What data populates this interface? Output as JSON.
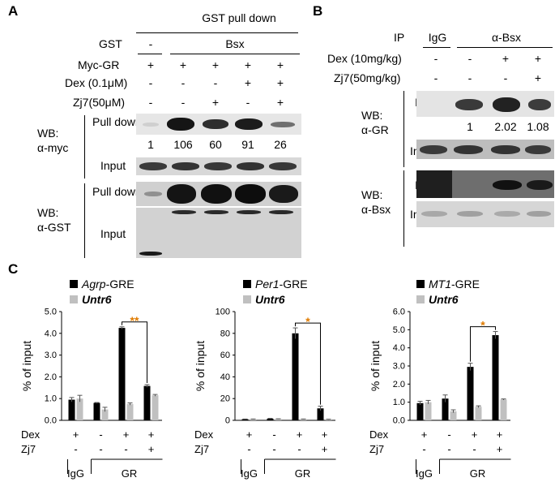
{
  "panelA": {
    "letter": "A",
    "header": "GST pull down",
    "rows": [
      {
        "label": "GST",
        "values": [
          "-",
          "Bsx"
        ]
      },
      {
        "label": "Myc-GR",
        "values": [
          "+",
          "+",
          "+",
          "+",
          "+"
        ]
      },
      {
        "label": "Dex (0.1μM)",
        "values": [
          "-",
          "-",
          "-",
          "+",
          "+"
        ]
      },
      {
        "label": "Zj7(50μM)",
        "values": [
          "-",
          "-",
          "+",
          "-",
          "+"
        ]
      }
    ],
    "wb_myc": {
      "label_line1": "WB:",
      "label_line2": "α-myc",
      "pull_down": "Pull down",
      "input": "Input",
      "quant": [
        "1",
        "106",
        "60",
        "91",
        "26"
      ]
    },
    "wb_gst": {
      "label_line1": "WB:",
      "label_line2": "α-GST",
      "pull_down": "Pull down",
      "input": "Input"
    }
  },
  "panelB": {
    "letter": "B",
    "ip_label": "IP",
    "igg": "IgG",
    "anti_bsx": "α-Bsx",
    "rows": [
      {
        "label": "Dex (10mg/kg)",
        "values": [
          "-",
          "-",
          "+",
          "+"
        ]
      },
      {
        "label": "Zj7(50mg/kg)",
        "values": [
          "-",
          "-",
          "-",
          "+"
        ]
      }
    ],
    "wb_gr": {
      "label_line1": "WB:",
      "label_line2": "α-GR",
      "ip": "IP",
      "input": "Input",
      "quant": [
        "1",
        "2.02",
        "1.08"
      ]
    },
    "wb_bsx": {
      "label_line1": "WB:",
      "label_line2": "α-Bsx",
      "ip": "IP",
      "input": "Input"
    }
  },
  "panelC": {
    "letter": "C",
    "row_labels": {
      "dex": "Dex",
      "zj7": "Zj7"
    },
    "dex_values": [
      "+",
      "-",
      "+",
      "+"
    ],
    "zj7_values": [
      "-",
      "-",
      "-",
      "+"
    ],
    "group_labels": {
      "igg": "IgG",
      "gr": "GR"
    },
    "colors": {
      "series1": "#000000",
      "series2": "#c0c0c0",
      "star": "#e07b00"
    },
    "ylabel": "% of input"
  },
  "chart_data": [
    {
      "type": "bar",
      "categories": [
        "IgG +Dex",
        "GR -Dex",
        "GR +Dex",
        "GR +Dex +Zj7"
      ],
      "series": [
        {
          "name": "Agrp",
          "name_suffix": "-GRE",
          "values": [
            0.95,
            0.8,
            4.25,
            1.58
          ],
          "errors": [
            0.1,
            0.02,
            0.05,
            0.06
          ]
        },
        {
          "name": "Untr6",
          "name_suffix": "",
          "values": [
            1.0,
            0.5,
            0.75,
            1.15
          ],
          "errors": [
            0.15,
            0.1,
            0.05,
            0.04
          ]
        }
      ],
      "yticks": [
        "0.0",
        "1.0",
        "2.0",
        "3.0",
        "4.0",
        "5.0"
      ],
      "ylim": [
        0,
        5
      ],
      "ylabel": "% of input",
      "significance": "**"
    },
    {
      "type": "bar",
      "categories": [
        "IgG +Dex",
        "GR -Dex",
        "GR +Dex",
        "GR +Dex +Zj7"
      ],
      "series": [
        {
          "name": "Per1",
          "name_suffix": "-GRE",
          "values": [
            1.0,
            1.5,
            80,
            11
          ],
          "errors": [
            0.2,
            0.3,
            5,
            2
          ]
        },
        {
          "name": "Untr6",
          "name_suffix": "",
          "values": [
            1.0,
            1.2,
            1.0,
            0.8
          ],
          "errors": [
            0.2,
            0.2,
            0.2,
            0.2
          ]
        }
      ],
      "yticks": [
        "0",
        "20",
        "40",
        "60",
        "80",
        "100"
      ],
      "ylim": [
        0,
        100
      ],
      "ylabel": "% of input",
      "significance": "*"
    },
    {
      "type": "bar",
      "categories": [
        "IgG +Dex",
        "GR -Dex",
        "GR +Dex",
        "GR +Dex +Zj7"
      ],
      "series": [
        {
          "name": "MT1",
          "name_suffix": "-GRE",
          "values": [
            0.95,
            1.2,
            2.95,
            4.7
          ],
          "errors": [
            0.1,
            0.2,
            0.2,
            0.2
          ]
        },
        {
          "name": "Untr6",
          "name_suffix": "",
          "values": [
            1.0,
            0.5,
            0.75,
            1.15
          ],
          "errors": [
            0.1,
            0.08,
            0.05,
            0.03
          ]
        }
      ],
      "yticks": [
        "0.0",
        "1.0",
        "2.0",
        "3.0",
        "4.0",
        "5.0",
        "6.0"
      ],
      "ylim": [
        0,
        6
      ],
      "ylabel": "% of input",
      "significance": "*"
    }
  ]
}
